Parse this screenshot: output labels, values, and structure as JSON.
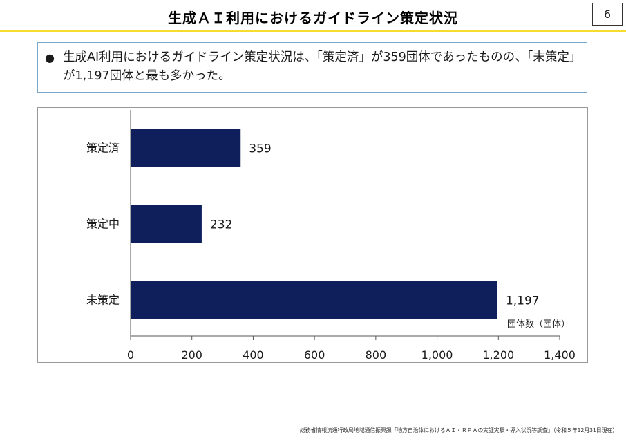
{
  "header": {
    "title": "生成ＡＩ利用におけるガイドライン策定状況",
    "page_number": "6",
    "rule_color": "#f5dc2e"
  },
  "summary": {
    "bullet": "●",
    "text": "生成AI利用におけるガイドライン策定状況は、「策定済」が359団体であったものの、「未策定」が1,197団体と最も多かった。"
  },
  "chart_data": {
    "type": "bar",
    "orientation": "horizontal",
    "title": "",
    "categories": [
      "策定済",
      "策定中",
      "未策定"
    ],
    "values": [
      359,
      232,
      1197
    ],
    "value_labels": [
      "359",
      "232",
      "1,197"
    ],
    "xlabel": "団体数（団体）",
    "ylabel": "",
    "xlim": [
      0,
      1400
    ],
    "xticks": [
      0,
      200,
      400,
      600,
      800,
      1000,
      1200,
      1400
    ],
    "xtick_labels": [
      "0",
      "200",
      "400",
      "600",
      "800",
      "1,000",
      "1,200",
      "1,400"
    ],
    "bar_color": "#0e1f5b",
    "grid": false
  },
  "footer": {
    "source": "総務省情報流通行政局地域通信振興課「地方自治体におけるＡＩ・ＲＰＡの実証実験・導入状況等調査」（令和５年12月31日現在）"
  }
}
